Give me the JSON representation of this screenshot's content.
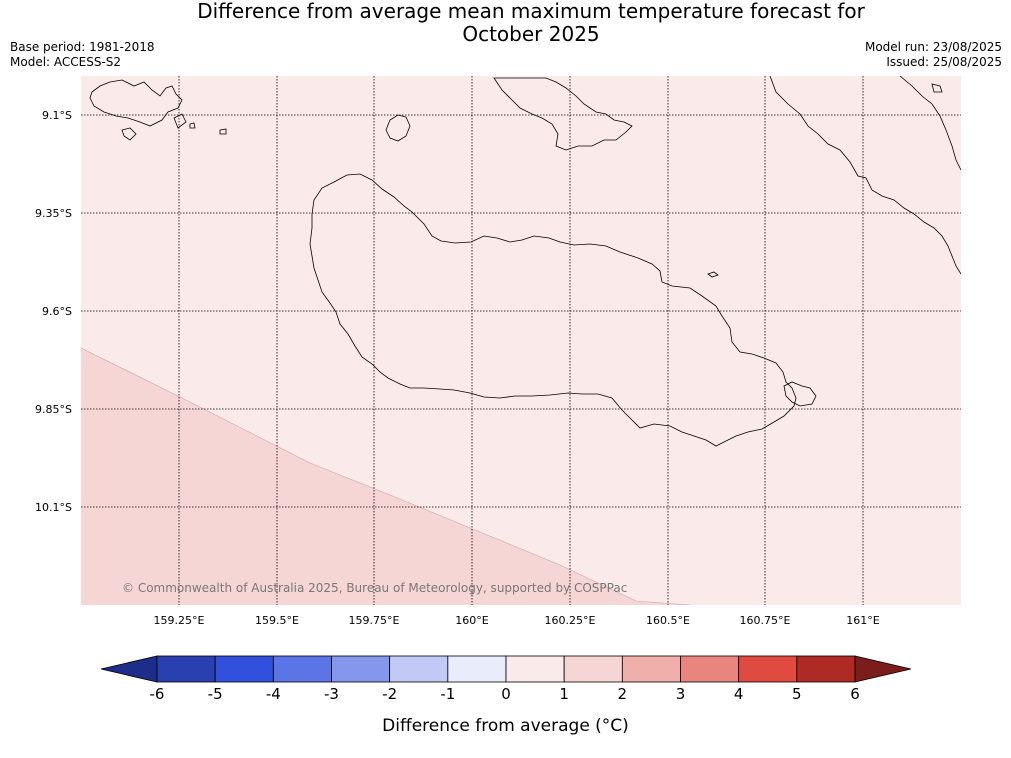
{
  "title_line1": "Difference from average mean maximum temperature forecast for",
  "title_line2": "October 2025",
  "meta": {
    "base_period": "Base period: 1981-2018",
    "model": "Model: ACCESS-S2",
    "model_run": "Model run: 23/08/2025",
    "issued": "Issued: 25/08/2025"
  },
  "map": {
    "lon_ticks": [
      "159.25°E",
      "159.5°E",
      "159.75°E",
      "160°E",
      "160.25°E",
      "160.5°E",
      "160.75°E",
      "161°E"
    ],
    "lat_ticks": [
      "9.1°S",
      "9.35°S",
      "9.6°S",
      "9.85°S",
      "10.1°S"
    ],
    "copyright": "© Commonwealth of Australia 2025, Bureau of Meteorology, supported by COSPPac",
    "fill_colors": {
      "zero_to_one": "#fbeaea",
      "one_to_two": "#f6d6d4"
    }
  },
  "colorbar": {
    "label": "Difference from average (°C)",
    "ticks": [
      "-6",
      "-5",
      "-4",
      "-3",
      "-2",
      "-1",
      "0",
      "1",
      "2",
      "3",
      "4",
      "5",
      "6"
    ],
    "colors": [
      "#1e2c8a",
      "#2a3fb0",
      "#3150dd",
      "#5b74e6",
      "#8497ec",
      "#c3c9f5",
      "#e9ecfb",
      "#fbeaea",
      "#f6d6d4",
      "#efb0ac",
      "#e8857e",
      "#df4b40",
      "#ae2a25",
      "#7a1d1b"
    ]
  }
}
